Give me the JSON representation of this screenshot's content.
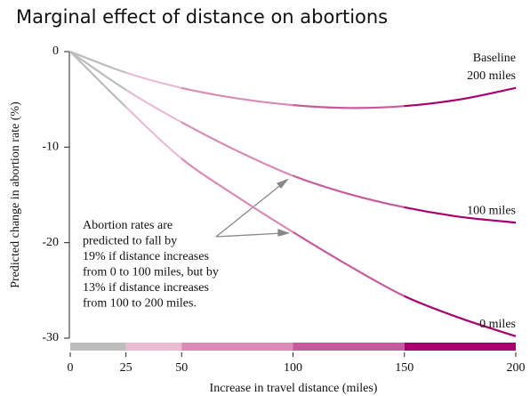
{
  "chart_data": {
    "type": "line",
    "title": "Marginal effect of distance on abortions",
    "xlabel": "Increase in travel distance (miles)",
    "ylabel": "Predicted change in abortion rate (%)",
    "legend_title": "Baseline",
    "x": [
      0,
      25,
      50,
      75,
      100,
      125,
      150,
      175,
      200
    ],
    "series": [
      {
        "name": "200 miles",
        "values": [
          0,
          -2.2,
          -3.8,
          -4.9,
          -5.6,
          -5.9,
          -5.7,
          -5.0,
          -3.8
        ]
      },
      {
        "name": "100 miles",
        "values": [
          0,
          -4.0,
          -7.4,
          -10.4,
          -13.0,
          -14.9,
          -16.3,
          -17.3,
          -17.9
        ]
      },
      {
        "name": "0 miles",
        "values": [
          0,
          -5.8,
          -11.2,
          -15.2,
          -18.9,
          -22.4,
          -25.6,
          -27.9,
          -29.8
        ]
      }
    ],
    "bands": [
      {
        "from": 0,
        "to": 25,
        "color": "#bdbdbd"
      },
      {
        "from": 25,
        "to": 50,
        "color": "#e9bcd3"
      },
      {
        "from": 50,
        "to": 100,
        "color": "#d98cb6"
      },
      {
        "from": 100,
        "to": 150,
        "color": "#c55b9c"
      },
      {
        "from": 150,
        "to": 200,
        "color": "#a8006e"
      }
    ],
    "xlim": [
      0,
      200
    ],
    "ylim": [
      -30,
      0
    ],
    "xticks": [
      0,
      25,
      50,
      100,
      150,
      200
    ],
    "yticks": [
      0,
      -10,
      -20,
      -30
    ],
    "annotation": [
      "Abortion rates are",
      "predicted to fall by",
      "19% if distance increases",
      "from 0 to 100 miles, but by",
      "13% if distance increases",
      "from 100 to 200 miles."
    ]
  }
}
